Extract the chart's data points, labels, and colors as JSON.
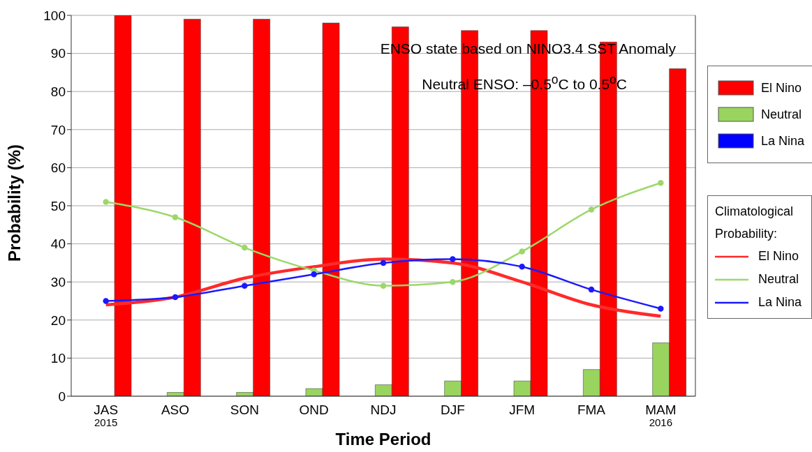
{
  "chart_data": {
    "type": "bar",
    "xlabel": "Time Period",
    "ylabel": "Probability (%)",
    "categories": [
      "JAS\n2015",
      "ASO",
      "SON",
      "OND",
      "NDJ",
      "DJF",
      "JFM",
      "FMA",
      "MAM\n2016"
    ],
    "series": [
      {
        "name": "El Nino",
        "color": "#ff0000",
        "values": [
          100,
          99,
          99,
          98,
          97,
          96,
          96,
          93,
          86
        ]
      },
      {
        "name": "Neutral",
        "color": "#99d45f",
        "values": [
          0,
          1,
          1,
          2,
          3,
          4,
          4,
          7,
          14
        ]
      },
      {
        "name": "La Nina",
        "color": "#0000ff",
        "values": [
          0,
          0,
          0,
          0,
          0,
          0,
          0,
          0,
          0
        ]
      },
      {
        "type": "line",
        "name": "El Nino",
        "color": "#ff2a2a",
        "marker": "none",
        "values": [
          24,
          26,
          31,
          34,
          36,
          35,
          30,
          24,
          21
        ]
      },
      {
        "type": "line",
        "name": "Neutral",
        "color": "#9bd86a",
        "marker": "circle",
        "values": [
          51,
          47,
          39,
          33,
          29,
          30,
          38,
          49,
          56
        ]
      },
      {
        "type": "line",
        "name": "La Nina",
        "color": "#1a1aff",
        "marker": "circle",
        "values": [
          25,
          26,
          29,
          32,
          35,
          36,
          34,
          28,
          23
        ]
      }
    ],
    "legend_title": "Climatological Probability:",
    "annotations": [
      "ENSO state based on NINO3.4 SST Anomaly",
      "Neutral ENSO: –0.5$^{o}$C to 0.5$^{o}$C"
    ],
    "ylim": [
      0,
      100
    ],
    "yticks": [
      0,
      10,
      20,
      30,
      40,
      50,
      60,
      70,
      80,
      90,
      100
    ],
    "grid": "y",
    "legend": "right"
  }
}
